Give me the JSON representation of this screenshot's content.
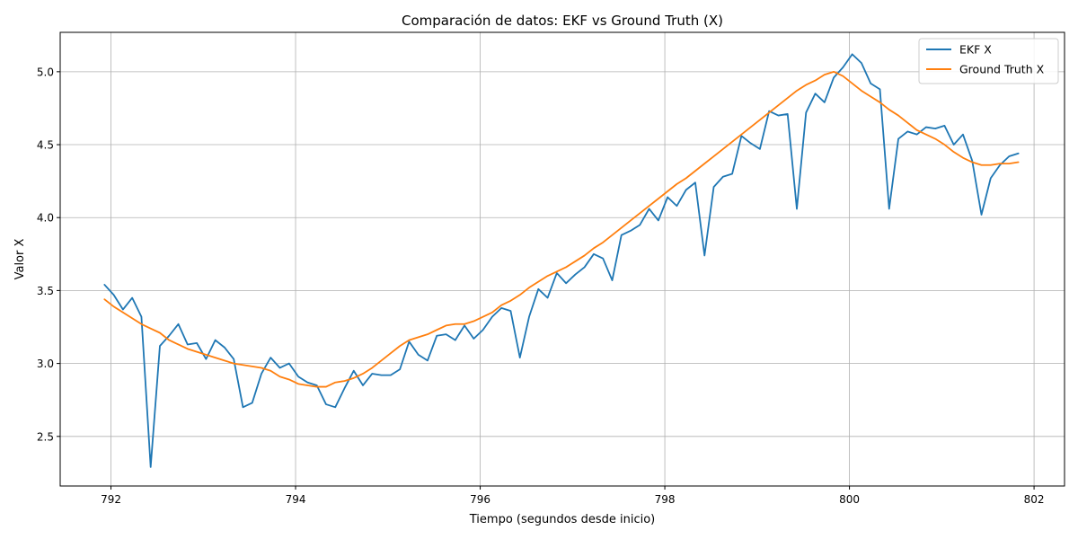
{
  "chart_data": {
    "type": "line",
    "title": "Comparación de datos: EKF vs Ground Truth (X)",
    "xlabel": "Tiempo (segundos desde inicio)",
    "ylabel": "Valor X",
    "xlim": [
      791.45,
      802.33
    ],
    "ylim": [
      2.16,
      5.27
    ],
    "xticks": [
      792,
      794,
      796,
      798,
      800,
      802
    ],
    "yticks": [
      2.5,
      3.0,
      3.5,
      4.0,
      4.5,
      5.0
    ],
    "xtick_labels": [
      "792",
      "794",
      "796",
      "798",
      "800",
      "802"
    ],
    "ytick_labels": [
      "2.5",
      "3.0",
      "3.5",
      "4.0",
      "4.5",
      "5.0"
    ],
    "grid": true,
    "legend_position": "top-right",
    "series": [
      {
        "name": "EKF X",
        "color": "#1f77b4",
        "x": [
          791.93,
          792.03,
          792.13,
          792.23,
          792.33,
          792.43,
          792.53,
          792.63,
          792.73,
          792.83,
          792.93,
          793.03,
          793.13,
          793.23,
          793.33,
          793.43,
          793.53,
          793.63,
          793.73,
          793.83,
          793.93,
          794.03,
          794.13,
          794.23,
          794.33,
          794.43,
          794.53,
          794.63,
          794.73,
          794.83,
          794.93,
          795.03,
          795.13,
          795.23,
          795.33,
          795.43,
          795.53,
          795.63,
          795.73,
          795.83,
          795.93,
          796.03,
          796.13,
          796.23,
          796.33,
          796.43,
          796.53,
          796.63,
          796.73,
          796.83,
          796.93,
          797.03,
          797.13,
          797.23,
          797.33,
          797.43,
          797.53,
          797.63,
          797.73,
          797.83,
          797.93,
          798.03,
          798.13,
          798.23,
          798.33,
          798.43,
          798.53,
          798.63,
          798.73,
          798.83,
          798.93,
          799.03,
          799.13,
          799.23,
          799.33,
          799.43,
          799.53,
          799.63,
          799.73,
          799.83,
          799.93,
          800.03,
          800.13,
          800.23,
          800.33,
          800.43,
          800.53,
          800.63,
          800.73,
          800.83,
          800.93,
          801.03,
          801.13,
          801.23,
          801.33,
          801.43,
          801.53,
          801.63,
          801.73,
          801.83
        ],
        "y": [
          3.54,
          3.47,
          3.37,
          3.45,
          3.32,
          2.29,
          3.12,
          3.19,
          3.27,
          3.13,
          3.14,
          3.03,
          3.16,
          3.11,
          3.03,
          2.7,
          2.73,
          2.93,
          3.04,
          2.97,
          3.0,
          2.91,
          2.87,
          2.85,
          2.72,
          2.7,
          2.83,
          2.95,
          2.85,
          2.93,
          2.92,
          2.92,
          2.96,
          3.15,
          3.06,
          3.02,
          3.19,
          3.2,
          3.16,
          3.26,
          3.17,
          3.23,
          3.32,
          3.38,
          3.36,
          3.04,
          3.32,
          3.51,
          3.45,
          3.62,
          3.55,
          3.61,
          3.66,
          3.75,
          3.72,
          3.57,
          3.88,
          3.91,
          3.95,
          4.06,
          3.98,
          4.14,
          4.08,
          4.19,
          4.24,
          3.74,
          4.21,
          4.28,
          4.3,
          4.56,
          4.51,
          4.47,
          4.73,
          4.7,
          4.71,
          4.06,
          4.72,
          4.85,
          4.79,
          4.96,
          5.03,
          5.12,
          5.06,
          4.92,
          4.88,
          4.06,
          4.54,
          4.59,
          4.57,
          4.62,
          4.61,
          4.63,
          4.5,
          4.57,
          4.39,
          4.02,
          4.27,
          4.36,
          4.42,
          4.44
        ]
      },
      {
        "name": "Ground Truth X",
        "color": "#ff7f0e",
        "x": [
          791.93,
          792.03,
          792.13,
          792.23,
          792.33,
          792.43,
          792.53,
          792.63,
          792.73,
          792.83,
          792.93,
          793.03,
          793.13,
          793.23,
          793.33,
          793.43,
          793.53,
          793.63,
          793.73,
          793.83,
          793.93,
          794.03,
          794.13,
          794.23,
          794.33,
          794.43,
          794.53,
          794.63,
          794.73,
          794.83,
          794.93,
          795.03,
          795.13,
          795.23,
          795.33,
          795.43,
          795.53,
          795.63,
          795.73,
          795.83,
          795.93,
          796.03,
          796.13,
          796.23,
          796.33,
          796.43,
          796.53,
          796.63,
          796.73,
          796.83,
          796.93,
          797.03,
          797.13,
          797.23,
          797.33,
          797.43,
          797.53,
          797.63,
          797.73,
          797.83,
          797.93,
          798.03,
          798.13,
          798.23,
          798.33,
          798.43,
          798.53,
          798.63,
          798.73,
          798.83,
          798.93,
          799.03,
          799.13,
          799.23,
          799.33,
          799.43,
          799.53,
          799.63,
          799.73,
          799.83,
          799.93,
          800.03,
          800.13,
          800.23,
          800.33,
          800.43,
          800.53,
          800.63,
          800.73,
          800.83,
          800.93,
          801.03,
          801.13,
          801.23,
          801.33,
          801.43,
          801.53,
          801.63,
          801.73,
          801.83
        ],
        "y": [
          3.44,
          3.39,
          3.35,
          3.31,
          3.27,
          3.24,
          3.21,
          3.16,
          3.13,
          3.1,
          3.08,
          3.06,
          3.04,
          3.02,
          3.0,
          2.99,
          2.98,
          2.97,
          2.95,
          2.91,
          2.89,
          2.86,
          2.85,
          2.84,
          2.84,
          2.87,
          2.88,
          2.9,
          2.93,
          2.97,
          3.02,
          3.07,
          3.12,
          3.16,
          3.18,
          3.2,
          3.23,
          3.26,
          3.27,
          3.27,
          3.29,
          3.32,
          3.35,
          3.4,
          3.43,
          3.47,
          3.52,
          3.56,
          3.6,
          3.63,
          3.66,
          3.7,
          3.74,
          3.79,
          3.83,
          3.88,
          3.93,
          3.98,
          4.03,
          4.08,
          4.13,
          4.18,
          4.23,
          4.27,
          4.32,
          4.37,
          4.42,
          4.47,
          4.52,
          4.57,
          4.62,
          4.67,
          4.72,
          4.77,
          4.82,
          4.87,
          4.91,
          4.94,
          4.98,
          5.0,
          4.97,
          4.92,
          4.87,
          4.83,
          4.79,
          4.74,
          4.7,
          4.65,
          4.6,
          4.57,
          4.54,
          4.5,
          4.45,
          4.41,
          4.38,
          4.36,
          4.36,
          4.37,
          4.37,
          4.38
        ]
      }
    ]
  }
}
